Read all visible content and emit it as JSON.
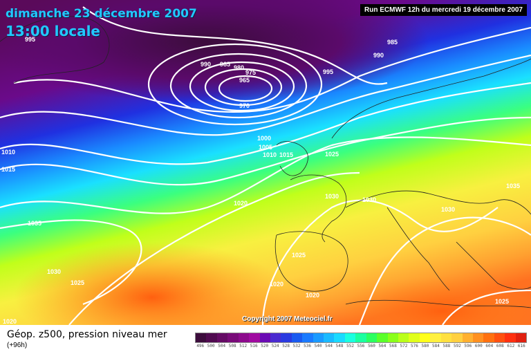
{
  "title": {
    "date": "dimanche 23 décembre 2007",
    "time": "13:00 locale"
  },
  "run_label": "Run ECMWF 12h du mercredi 19 décembre 2007",
  "copyright": "Copyright 2007 Meteociel.fr",
  "legend": {
    "title": "Géop. z500, pression niveau mer",
    "subtitle": "(+96h)",
    "ticks": [
      "496",
      "500",
      "504",
      "508",
      "512",
      "516",
      "520",
      "524",
      "528",
      "532",
      "536",
      "540",
      "544",
      "548",
      "552",
      "556",
      "560",
      "564",
      "568",
      "572",
      "576",
      "580",
      "584",
      "588",
      "592",
      "596",
      "600",
      "604",
      "608",
      "612",
      "616"
    ],
    "colors": [
      "#3c0c3c",
      "#500a50",
      "#640a64",
      "#780a78",
      "#8c0a8c",
      "#a00aa0",
      "#6a0ab4",
      "#4a2ad0",
      "#2a3ae0",
      "#1a5af0",
      "#1a7aff",
      "#1a9aff",
      "#1abaff",
      "#1adaff",
      "#1affe0",
      "#1affa0",
      "#2aff60",
      "#5aff2a",
      "#8aff1a",
      "#baff1a",
      "#e0ff1a",
      "#ffff1a",
      "#fff040",
      "#ffe040",
      "#ffd040",
      "#ffb030",
      "#ff9020",
      "#ff7010",
      "#ff5010",
      "#ff3010",
      "#e02010"
    ]
  },
  "isobar_labels": [
    "995",
    "990",
    "985",
    "980",
    "975",
    "965",
    "970",
    "985",
    "990",
    "995",
    "1000",
    "1005",
    "1010",
    "1015",
    "1025",
    "1030",
    "1030",
    "1030",
    "1035",
    "1010",
    "1015",
    "1020",
    "1035",
    "1030",
    "1025",
    "1025",
    "1020",
    "1020",
    "1025",
    "1020"
  ]
}
